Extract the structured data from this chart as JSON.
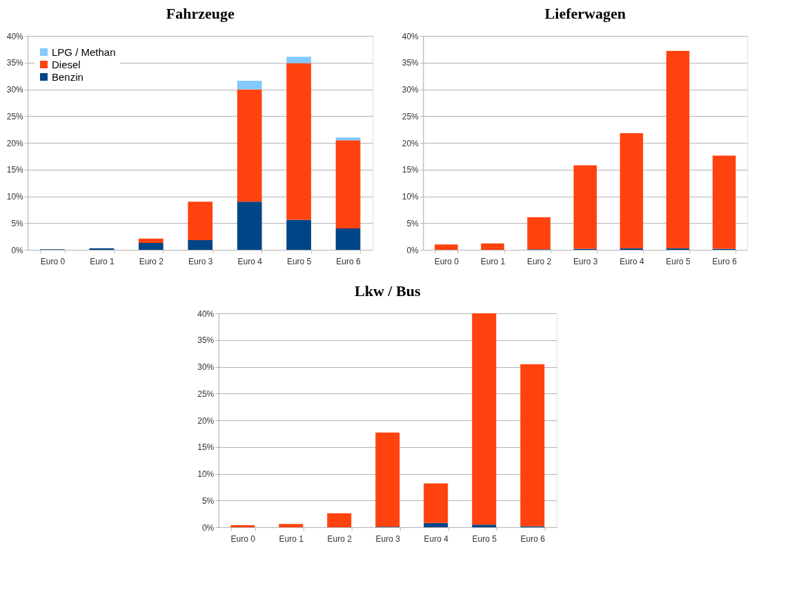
{
  "chart_data": [
    {
      "type": "bar",
      "title": "Fahrzeuge",
      "stacked": true,
      "grid": "y",
      "legend": "top left",
      "categories": [
        "Euro 0",
        "Euro 1",
        "Euro 2",
        "Euro 3",
        "Euro 4",
        "Euro 5",
        "Euro 6"
      ],
      "ylim": [
        0,
        40
      ],
      "yticks": [
        {
          "value": 0,
          "label": "0%"
        },
        {
          "value": 5,
          "label": "5%"
        },
        {
          "value": 10,
          "label": "10%"
        },
        {
          "value": 15,
          "label": "15%"
        },
        {
          "value": 20,
          "label": "20%"
        },
        {
          "value": 25,
          "label": "25%"
        },
        {
          "value": 30,
          "label": "30%"
        },
        {
          "value": 35,
          "label": "35%"
        },
        {
          "value": 40,
          "label": "40%"
        }
      ],
      "series": [
        {
          "name": "Benzin",
          "color": "#004586",
          "values": [
            0.1,
            0.3,
            1.3,
            1.8,
            9.0,
            5.6,
            4.0
          ]
        },
        {
          "name": "Diesel",
          "color": "#ff420e",
          "values": [
            0,
            0,
            0.8,
            7.2,
            21.0,
            29.3,
            16.5
          ]
        },
        {
          "name": "LPG / Methan",
          "color": "#83caff",
          "values": [
            0,
            0,
            0,
            0,
            1.6,
            1.2,
            0.5
          ]
        }
      ]
    },
    {
      "type": "bar",
      "title": "Lieferwagen",
      "stacked": true,
      "grid": "y",
      "categories": [
        "Euro 0",
        "Euro 1",
        "Euro 2",
        "Euro 3",
        "Euro 4",
        "Euro 5",
        "Euro 6"
      ],
      "ylim": [
        0,
        40
      ],
      "yticks": [
        {
          "value": 0,
          "label": "0%"
        },
        {
          "value": 5,
          "label": "5%"
        },
        {
          "value": 10,
          "label": "10%"
        },
        {
          "value": 15,
          "label": "15%"
        },
        {
          "value": 20,
          "label": "20%"
        },
        {
          "value": 25,
          "label": "25%"
        },
        {
          "value": 30,
          "label": "30%"
        },
        {
          "value": 35,
          "label": "35%"
        },
        {
          "value": 40,
          "label": "40%"
        }
      ],
      "series": [
        {
          "color": "#004586",
          "values": [
            0,
            0,
            0.1,
            0.2,
            0.3,
            0.3,
            0.2
          ]
        },
        {
          "color": "#ff420e",
          "values": [
            1.0,
            1.2,
            6.0,
            15.6,
            21.5,
            36.9,
            17.4
          ]
        }
      ]
    },
    {
      "type": "bar",
      "title": "Lkw / Bus",
      "stacked": true,
      "grid": "y",
      "categories": [
        "Euro 0",
        "Euro 1",
        "Euro 2",
        "Euro 3",
        "Euro 4",
        "Euro 5",
        "Euro 6"
      ],
      "ylim": [
        0,
        40
      ],
      "yticks": [
        {
          "value": 0,
          "label": "0%"
        },
        {
          "value": 5,
          "label": "5%"
        },
        {
          "value": 10,
          "label": "10%"
        },
        {
          "value": 15,
          "label": "15%"
        },
        {
          "value": 20,
          "label": "20%"
        },
        {
          "value": 25,
          "label": "25%"
        },
        {
          "value": 30,
          "label": "30%"
        },
        {
          "value": 35,
          "label": "35%"
        },
        {
          "value": 40,
          "label": "40%"
        }
      ],
      "series": [
        {
          "color": "#004586",
          "values": [
            0,
            0,
            0,
            0.1,
            0.8,
            0.5,
            0.2
          ]
        },
        {
          "color": "#ff420e",
          "values": [
            0.4,
            0.6,
            2.6,
            17.6,
            7.4,
            39.5,
            30.3
          ]
        }
      ]
    }
  ]
}
